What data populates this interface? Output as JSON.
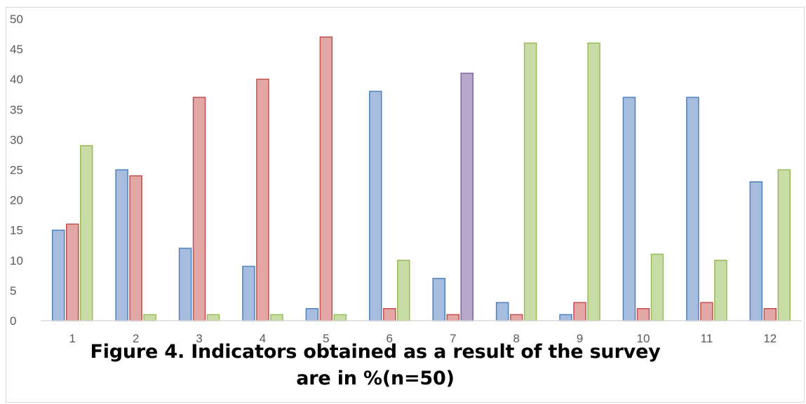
{
  "chart_data": {
    "type": "bar",
    "categories": [
      "1",
      "2",
      "3",
      "4",
      "5",
      "6",
      "7",
      "8",
      "9",
      "10",
      "11",
      "12"
    ],
    "series": [
      {
        "values": [
          15,
          25,
          12,
          9,
          2,
          38,
          7,
          3,
          1,
          37,
          37,
          23
        ]
      },
      {
        "values": [
          16,
          24,
          37,
          40,
          47,
          2,
          1,
          1,
          3,
          2,
          3,
          2
        ]
      },
      {
        "values": [
          29,
          1,
          1,
          1,
          1,
          10,
          2,
          46,
          46,
          11,
          10,
          25
        ]
      },
      {
        "values": [
          null,
          null,
          null,
          null,
          null,
          null,
          41,
          null,
          null,
          null,
          null,
          null
        ]
      }
    ],
    "series_colors": [
      {
        "fill": "#a7bddf",
        "stroke": "#4f81bd"
      },
      {
        "fill": "#e3a7a6",
        "stroke": "#c0504d"
      },
      {
        "fill": "#c8dca5",
        "stroke": "#9bbb59"
      },
      {
        "fill": "#b7a7cb",
        "stroke": "#8064a2"
      }
    ],
    "y_ticks": [
      "0",
      "5",
      "10",
      "15",
      "20",
      "25",
      "30",
      "35",
      "40",
      "45",
      "50"
    ],
    "ylim": [
      0,
      50
    ],
    "grid": false,
    "title": "Figure 4. Indicators obtained as a result of the survey are in %(n=50)"
  },
  "caption": {
    "line1": "Figure 4. Indicators obtained as a result of the survey",
    "line2": "are in %(n=50)"
  }
}
